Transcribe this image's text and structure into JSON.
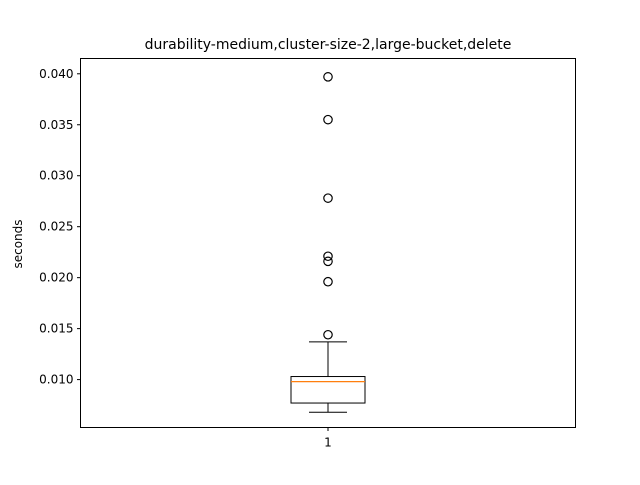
{
  "chart_data": {
    "type": "box",
    "title": "durability-medium,cluster-size-2,large-bucket,delete",
    "xlabel": "",
    "ylabel": "seconds",
    "ylim": [
      0.0053,
      0.0415
    ],
    "yticks": [
      {
        "value": 0.01,
        "label": "0.010"
      },
      {
        "value": 0.015,
        "label": "0.015"
      },
      {
        "value": 0.02,
        "label": "0.020"
      },
      {
        "value": 0.025,
        "label": "0.025"
      },
      {
        "value": 0.03,
        "label": "0.030"
      },
      {
        "value": 0.035,
        "label": "0.035"
      },
      {
        "value": 0.04,
        "label": "0.040"
      }
    ],
    "categories": [
      "1"
    ],
    "boxes": [
      {
        "category": "1",
        "whisker_low": 0.0068,
        "q1": 0.0077,
        "median": 0.0098,
        "q3": 0.0103,
        "whisker_high": 0.0137,
        "outliers": [
          0.0144,
          0.0196,
          0.0216,
          0.0221,
          0.0278,
          0.0355,
          0.0397
        ]
      }
    ],
    "grid": false,
    "colors": {
      "box": "#000000",
      "median": "#ff7f0e",
      "outlier_edge": "#000000"
    }
  }
}
